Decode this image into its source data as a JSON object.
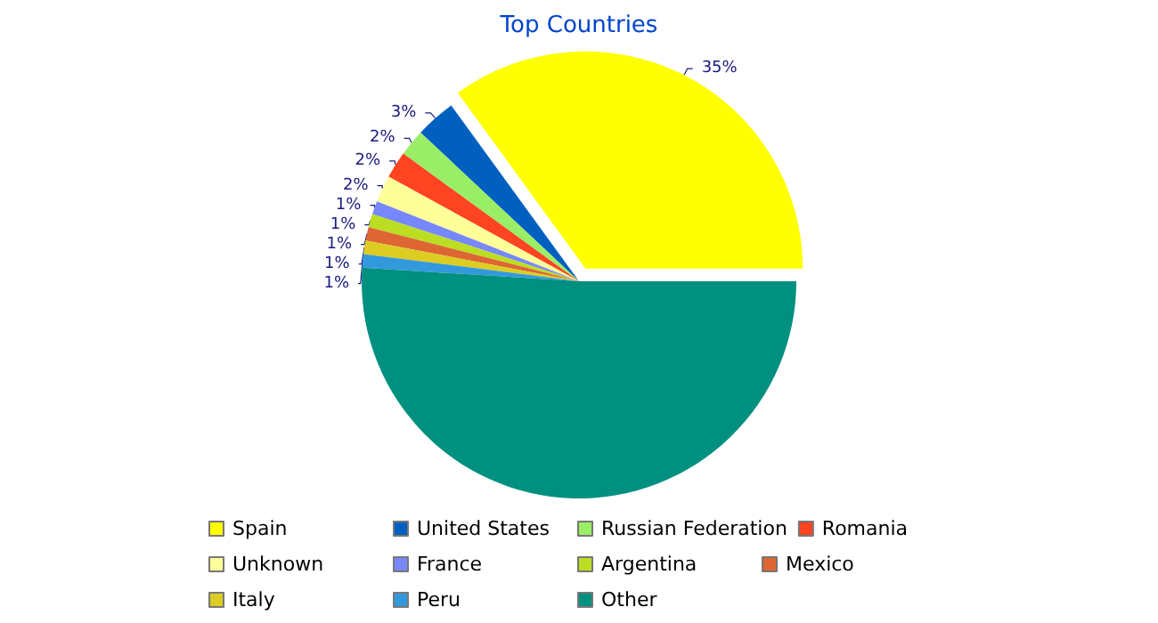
{
  "chart_data": {
    "type": "pie",
    "title": "Top Countries",
    "categories": [
      "Spain",
      "United States",
      "Russian Federation",
      "Romania",
      "Unknown",
      "France",
      "Argentina",
      "Mexico",
      "Italy",
      "Peru",
      "Other"
    ],
    "values": [
      35,
      3,
      2,
      2,
      2,
      1,
      1,
      1,
      1,
      1,
      51
    ],
    "value_labels": [
      "35%",
      "3%",
      "2%",
      "2%",
      "2%",
      "1%",
      "1%",
      "1%",
      "1%",
      "1%",
      null
    ],
    "colors": [
      "#ffff00",
      "#0060c0",
      "#99ee66",
      "#ff4422",
      "#ffff99",
      "#7788ff",
      "#bbdd22",
      "#dd6633",
      "#ddcc22",
      "#3399dd",
      "#009080"
    ],
    "legend": "bottom"
  }
}
